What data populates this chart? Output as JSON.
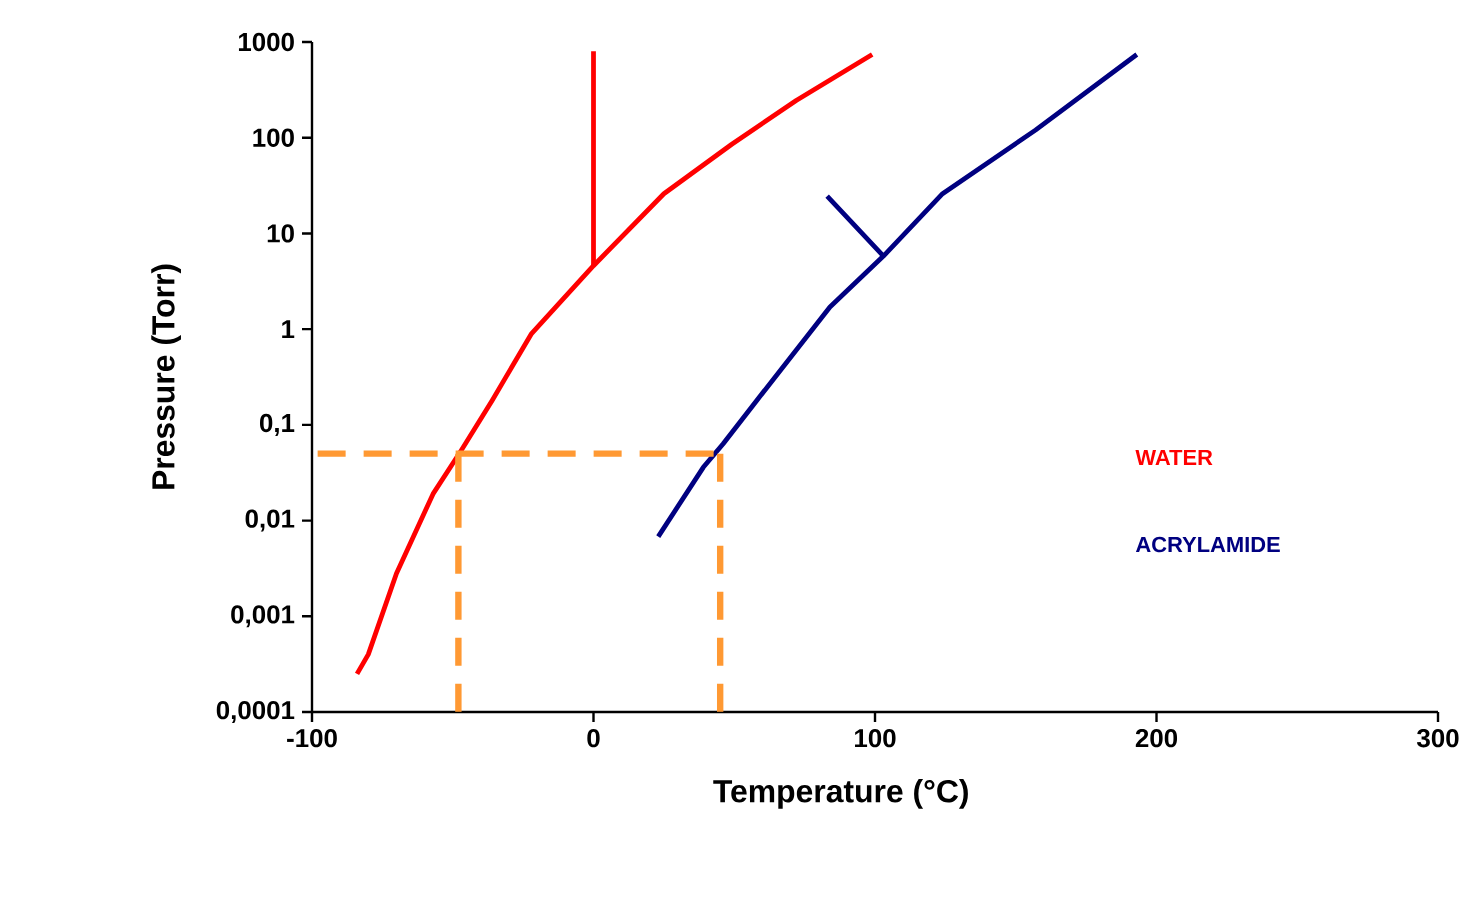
{
  "chart_data": {
    "type": "line",
    "xlabel": "Temperature  (°C)",
    "ylabel": "Pressure (Torr)",
    "log": "y",
    "xlim": [
      -100,
      300
    ],
    "xticks": [
      -100,
      0,
      100,
      200,
      300
    ],
    "ylim": [
      0.0001,
      1000
    ],
    "yticks": [
      {
        "value": 0.0001,
        "label": "0,0001"
      },
      {
        "value": 0.001,
        "label": "0,001"
      },
      {
        "value": 0.01,
        "label": "0,01"
      },
      {
        "value": 0.1,
        "label": "0,1"
      },
      1,
      10,
      100,
      1000
    ],
    "grid": false,
    "marker": "none",
    "series": [
      {
        "name": "WATER",
        "color": "#ff0000",
        "x": [
          -84,
          -80,
          -70,
          -57,
          -47,
          -36,
          -22,
          0,
          25,
          49,
          72,
          99
        ],
        "values": [
          0.00025,
          0.0004,
          0.0028,
          0.019,
          0.054,
          0.18,
          0.9,
          4.6,
          26,
          85,
          245,
          740
        ]
      },
      {
        "color": "#ff0000",
        "x": [
          0,
          0
        ],
        "values": [
          4.6,
          800
        ]
      },
      {
        "name": "ACRYLAMIDE",
        "color": "#000080",
        "x": [
          23,
          39,
          46,
          58,
          84,
          103,
          124,
          157,
          193,
          null,
          83,
          103
        ],
        "values": [
          0.0068,
          0.036,
          0.063,
          0.18,
          1.7,
          5.8,
          26,
          120,
          740,
          null,
          24.5,
          5.8
        ]
      },
      {
        "color": "#ff9933",
        "line_style": "dashed",
        "x": [
          -98,
          45
        ],
        "values": [
          0.05,
          0.05
        ]
      },
      {
        "color": "#ff9933",
        "line_style": "dashed",
        "x": [
          -48,
          -48
        ],
        "values": [
          0.05,
          0.0001
        ]
      },
      {
        "color": "#ff9933",
        "line_style": "dashed",
        "x": [
          45,
          45
        ],
        "values": [
          0.05,
          0.0001
        ]
      }
    ]
  }
}
